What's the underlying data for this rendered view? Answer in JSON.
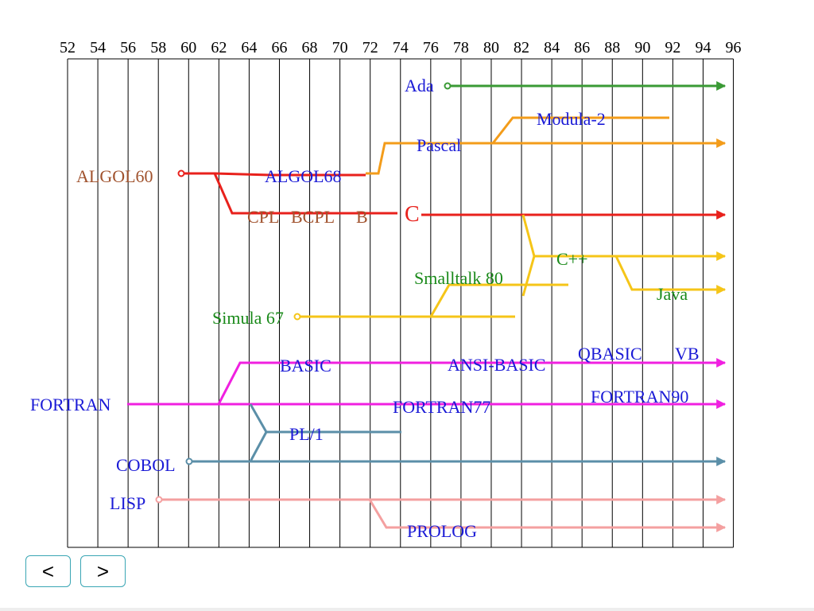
{
  "diagram": {
    "years": [
      "52",
      "54",
      "56",
      "58",
      "60",
      "62",
      "64",
      "66",
      "68",
      "70",
      "72",
      "74",
      "76",
      "78",
      "80",
      "82",
      "84",
      "86",
      "88",
      "90",
      "92",
      "94",
      "96"
    ],
    "colors": {
      "red": "#e8211c",
      "orange": "#f39c1a",
      "green": "#3a9a35",
      "yellow": "#f5c518",
      "magenta": "#f020e0",
      "steel": "#5b8fa8",
      "pink": "#f4a0a0",
      "label_blue": "#1a1ad6",
      "label_brown": "#a0522d",
      "label_green": "#1a8a1a",
      "label_red": "#e8211c"
    },
    "languages": {
      "ada": "Ada",
      "modula2": "Modula-2",
      "pascal": "Pascal",
      "algol60": "ALGOL60",
      "algol68": "ALGOL68",
      "cpl": "CPL",
      "bcpl": "BCPL",
      "b": "B",
      "c": "C",
      "cpp": "C++",
      "smalltalk80": "Smalltalk 80",
      "java": "Java",
      "simula67": "Simula 67",
      "basic": "BASIC",
      "ansi_basic": "ANSI-BASIC",
      "qbasic": "QBASIC",
      "vb": "VB",
      "fortran": "FORTRAN",
      "fortran77": "FORTRAN77",
      "fortran90": "FORTRAN90",
      "pl1": "PL/1",
      "cobol": "COBOL",
      "lisp": "LISP",
      "prolog": "PROLOG"
    }
  },
  "nav": {
    "prev_label": "<",
    "next_label": ">"
  }
}
